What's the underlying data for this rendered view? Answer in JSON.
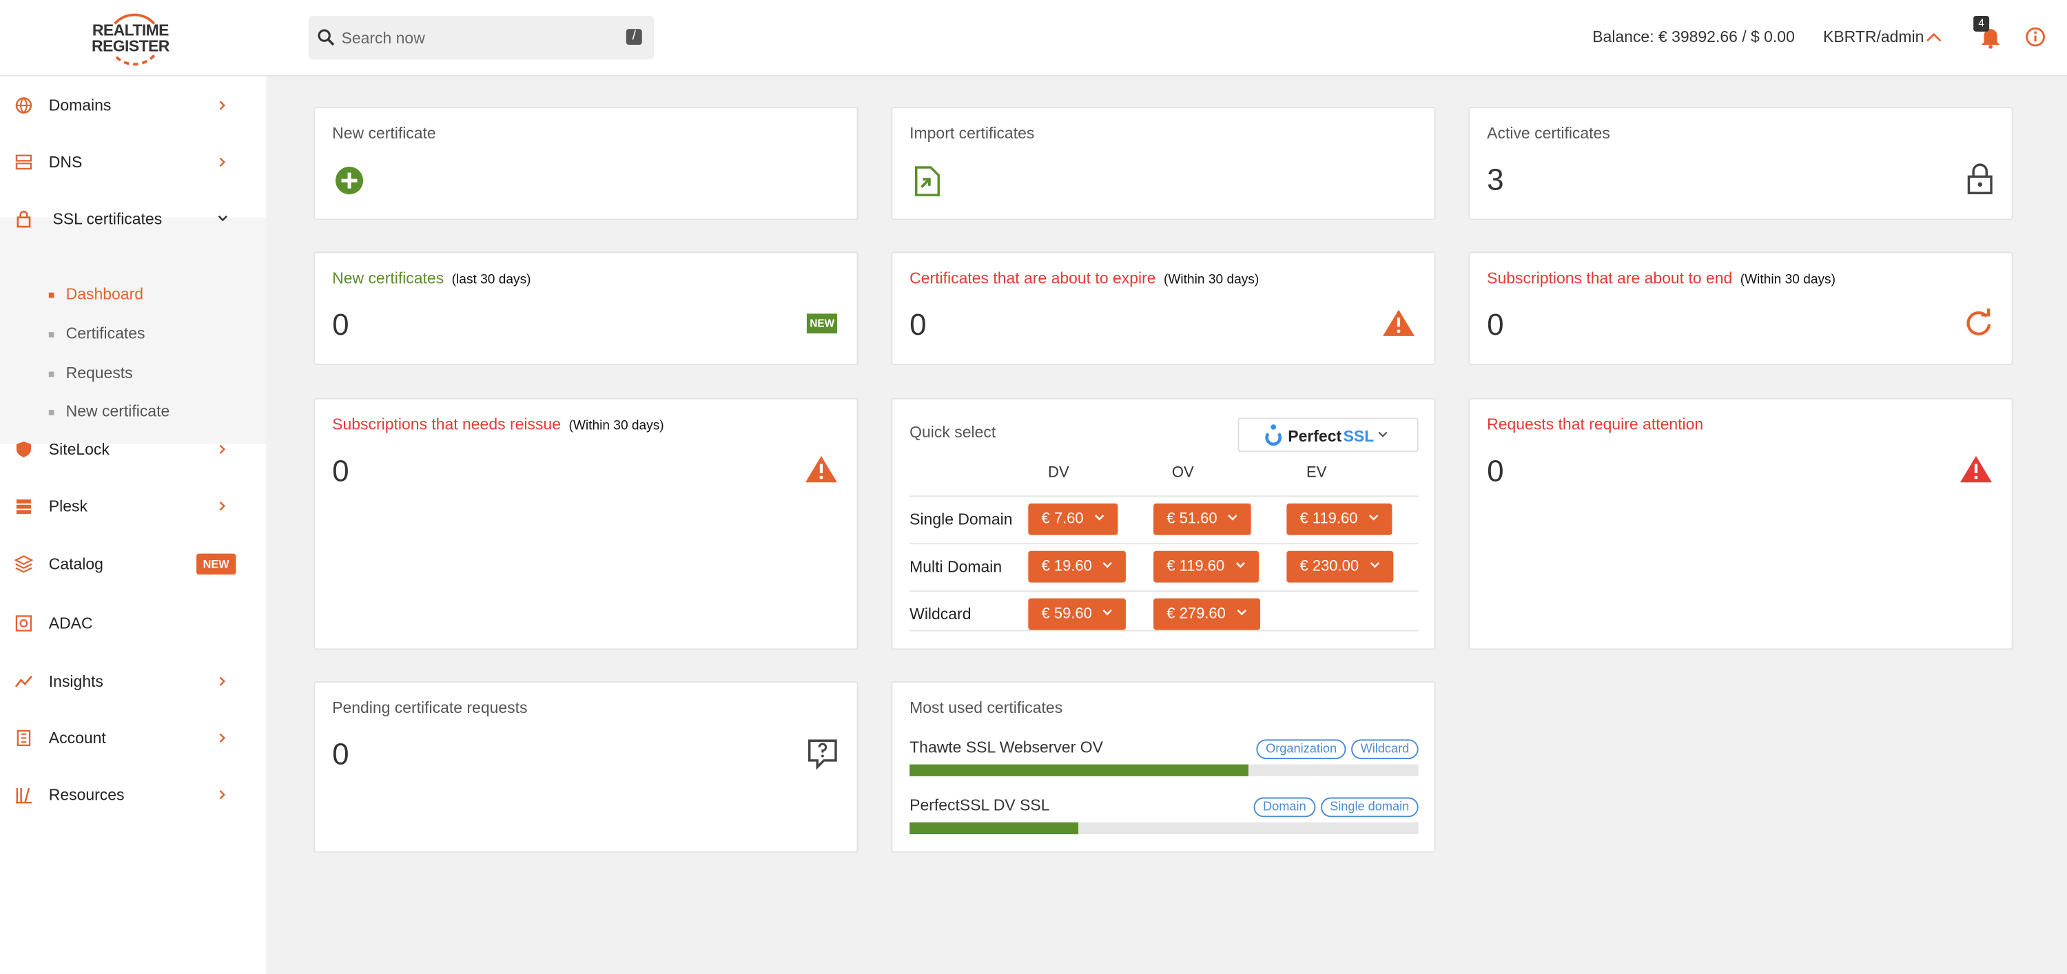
{
  "header": {
    "logo_line1": "REALTIME",
    "logo_line2": "REGISTER",
    "search_placeholder": "Search now",
    "search_key": "/",
    "balance": "Balance: € 39892.66 / $ 0.00",
    "account": "KBRTR/admin",
    "notifications": 4
  },
  "sidebar": {
    "items": [
      "Domains",
      "DNS",
      "SSL certificates",
      "SiteLock",
      "Plesk",
      "Catalog",
      "ADAC",
      "Insights",
      "Account",
      "Resources"
    ],
    "ssl_subitems": [
      "Dashboard",
      "Certificates",
      "Requests",
      "New certificate"
    ],
    "catalog_badge": "NEW"
  },
  "cards": {
    "new_certificate": {
      "title": "New certificate"
    },
    "import": {
      "title": "Import certificates"
    },
    "active": {
      "title": "Active certificates",
      "value": 3
    },
    "new_recent": {
      "title": "New certificates",
      "note": "(last 30 days)",
      "value": 0,
      "badge": "NEW"
    },
    "expiring": {
      "title": "Certificates that are about to expire",
      "note": "(Within 30 days)",
      "value": 0
    },
    "subs_end": {
      "title": "Subscriptions that are about to end",
      "note": "(Within 30 days)",
      "value": 0
    },
    "reissue": {
      "title": "Subscriptions that needs reissue",
      "note": "(Within 30 days)",
      "value": 0
    },
    "attention": {
      "title": "Requests that require attention",
      "value": 0
    },
    "pending": {
      "title": "Pending certificate requests",
      "value": 0
    },
    "quick_select": {
      "title": "Quick select",
      "brand_part1": "Perfect",
      "brand_part2": "SSL",
      "columns": [
        "DV",
        "OV",
        "EV"
      ],
      "rows": [
        {
          "label": "Single Domain",
          "prices": [
            "€ 7.60",
            "€ 51.60",
            "€ 119.60"
          ]
        },
        {
          "label": "Multi Domain",
          "prices": [
            "€ 19.60",
            "€ 119.60",
            "€ 230.00"
          ]
        },
        {
          "label": "Wildcard",
          "prices": [
            "€ 59.60",
            "€ 279.60"
          ]
        }
      ]
    },
    "most_used": {
      "title": "Most used certificates",
      "items": [
        {
          "name": "Thawte SSL Webserver OV",
          "tags": [
            "Organization",
            "Wildcard"
          ]
        },
        {
          "name": "PerfectSSL DV SSL",
          "tags": [
            "Domain",
            "Single domain"
          ]
        }
      ]
    }
  }
}
